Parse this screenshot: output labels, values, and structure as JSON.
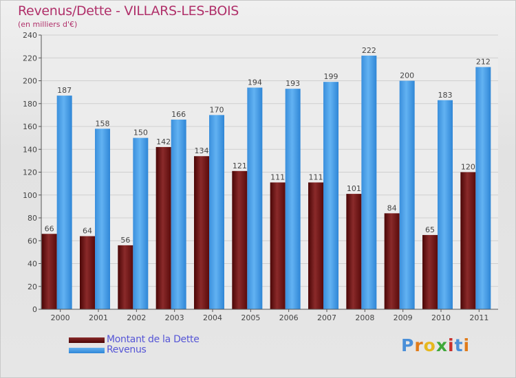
{
  "header": {
    "title": "Revenus/Dette - VILLARS-LES-BOIS",
    "subtitle": "(en milliers d'€)"
  },
  "colors": {
    "title": "#b0306a",
    "legend_text": "#5656d6",
    "dette": "#6b1414",
    "revenus": "#3f9ae6"
  },
  "legend": {
    "items": [
      {
        "label": "Montant de la Dette",
        "color": "#6b1414"
      },
      {
        "label": "Revenus",
        "color": "#3f9ae6"
      }
    ]
  },
  "logo": {
    "letters": [
      "P",
      "r",
      "o",
      "x",
      "i",
      "t",
      "i"
    ]
  },
  "chart_data": {
    "type": "bar",
    "title": "Revenus/Dette - VILLARS-LES-BOIS",
    "subtitle": "(en milliers d'€)",
    "categories": [
      "2000",
      "2001",
      "2002",
      "2003",
      "2004",
      "2005",
      "2006",
      "2007",
      "2008",
      "2009",
      "2010",
      "2011"
    ],
    "series": [
      {
        "name": "Montant de la Dette",
        "values": [
          66,
          64,
          56,
          142,
          134,
          121,
          111,
          111,
          101,
          84,
          65,
          120
        ]
      },
      {
        "name": "Revenus",
        "values": [
          187,
          158,
          150,
          166,
          170,
          194,
          193,
          199,
          222,
          200,
          183,
          212
        ]
      }
    ],
    "ylim": [
      0,
      240
    ],
    "yticks": [
      0,
      20,
      40,
      60,
      80,
      100,
      120,
      140,
      160,
      180,
      200,
      220,
      240
    ],
    "grid": true,
    "legend": "bottom-left"
  }
}
